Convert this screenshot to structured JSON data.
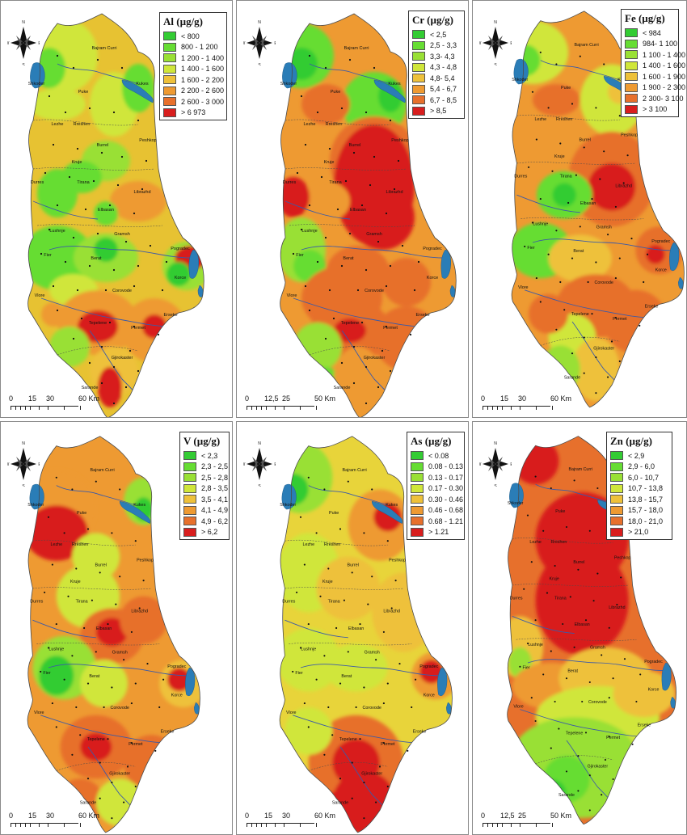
{
  "compass": {
    "n": "N",
    "s": "S",
    "e": "E",
    "w": "W"
  },
  "places": [
    "Bajram Curri",
    "Shkoder",
    "Kukes",
    "Puke",
    "Lezhe",
    "Rreshen",
    "Peshkop",
    "Burrel",
    "Kruje",
    "Durres",
    "Tirana",
    "Librazhd",
    "Elbasan",
    "Lushnje",
    "Gramsh",
    "Pogradec",
    "Fier",
    "Berat",
    "Korce",
    "Corovode",
    "Vlore",
    "Erseke",
    "Tepelene",
    "Permet",
    "Gjirokaster",
    "Sarande"
  ],
  "colors": {
    "sea": "#2a7db7",
    "river": "#3b5aa8",
    "border": "#4a4a4a",
    "dot": "#111111"
  },
  "panels": [
    {
      "id": "al",
      "title": "Al (µg/g)",
      "base_color": "#e7c232",
      "legend": [
        {
          "label": "< 800",
          "color": "#33cc33"
        },
        {
          "label": "800 - 1 200",
          "color": "#66dd33"
        },
        {
          "label": "1 200 - 1 400",
          "color": "#99e035"
        },
        {
          "label": "1 400 - 1 600",
          "color": "#d0e63a"
        },
        {
          "label": "1 600 - 2 200",
          "color": "#eec13a"
        },
        {
          "label": "2 200 - 2 600",
          "color": "#ee9a32"
        },
        {
          "label": "2 600 - 3 000",
          "color": "#e7702c"
        },
        {
          "label": "> 6 973",
          "color": "#d81e1e"
        }
      ],
      "scale": [
        "0",
        "15",
        "30",
        "60 Km"
      ]
    },
    {
      "id": "cr",
      "title": "Cr (µg/g)",
      "base_color": "#ee9a32",
      "legend": [
        {
          "label": "< 2,5",
          "color": "#33cc33"
        },
        {
          "label": "2,5 - 3,3",
          "color": "#66dd33"
        },
        {
          "label": "3,3- 4,3",
          "color": "#99e035"
        },
        {
          "label": "4,3 - 4,8",
          "color": "#d0e63a"
        },
        {
          "label": "4,8- 5,4",
          "color": "#eec13a"
        },
        {
          "label": "5,4 - 6,7",
          "color": "#ee9a32"
        },
        {
          "label": "6,7 - 8,5",
          "color": "#e7702c"
        },
        {
          "label": "> 8,5",
          "color": "#d81e1e"
        }
      ],
      "scale": [
        "0",
        "12,5",
        "25",
        "50 Km"
      ]
    },
    {
      "id": "fe",
      "title": "Fe (µg/g)",
      "base_color": "#ee9a32",
      "legend": [
        {
          "label": "< 984",
          "color": "#33cc33"
        },
        {
          "label": "984- 1 100",
          "color": "#66dd33"
        },
        {
          "label": "1 100 - 1 400",
          "color": "#99e035"
        },
        {
          "label": "1 400 - 1 600",
          "color": "#d0e63a"
        },
        {
          "label": "1 600 - 1 900",
          "color": "#eec13a"
        },
        {
          "label": "1 900 - 2 300",
          "color": "#ee9a32"
        },
        {
          "label": "2 300- 3 100",
          "color": "#e7702c"
        },
        {
          "label": "> 3 100",
          "color": "#d81e1e"
        }
      ],
      "scale": [
        "0",
        "15",
        "30",
        "60 Km"
      ]
    },
    {
      "id": "v",
      "title": "V (µg/g)",
      "base_color": "#ee9a32",
      "legend": [
        {
          "label": "< 2,3",
          "color": "#33cc33"
        },
        {
          "label": "2,3 - 2,5",
          "color": "#66dd33"
        },
        {
          "label": "2,5 - 2,8",
          "color": "#99e035"
        },
        {
          "label": "2,8 - 3,5",
          "color": "#d0e63a"
        },
        {
          "label": "3,5 - 4,1",
          "color": "#eec13a"
        },
        {
          "label": "4,1 - 4,9",
          "color": "#ee9a32"
        },
        {
          "label": "4,9 - 6,2",
          "color": "#e7702c"
        },
        {
          "label": "> 6,2",
          "color": "#d81e1e"
        }
      ],
      "scale": [
        "0",
        "15",
        "30",
        "60 Km"
      ]
    },
    {
      "id": "as",
      "title": "As (µg/g)",
      "base_color": "#e8d43a",
      "legend": [
        {
          "label": "< 0.08",
          "color": "#33cc33"
        },
        {
          "label": "0.08 - 0.13",
          "color": "#66dd33"
        },
        {
          "label": "0.13 - 0.17",
          "color": "#99e035"
        },
        {
          "label": "0.17 - 0.30",
          "color": "#d0e63a"
        },
        {
          "label": "0.30 - 0.46",
          "color": "#eec13a"
        },
        {
          "label": "0.46 - 0.68",
          "color": "#ee9a32"
        },
        {
          "label": "0.68 - 1.21",
          "color": "#e7702c"
        },
        {
          "label": "> 1.21",
          "color": "#d81e1e"
        }
      ],
      "scale": [
        "0",
        "15",
        "30",
        "60 Km"
      ]
    },
    {
      "id": "zn",
      "title": "Zn (µg/g)",
      "base_color": "#e7702c",
      "legend": [
        {
          "label": "< 2,9",
          "color": "#33cc33"
        },
        {
          "label": "2,9 - 6,0",
          "color": "#66dd33"
        },
        {
          "label": "6,0 - 10,7",
          "color": "#99e035"
        },
        {
          "label": "10,7 - 13,8",
          "color": "#d0e63a"
        },
        {
          "label": "13,8 - 15,7",
          "color": "#eec13a"
        },
        {
          "label": "15,7 - 18,0",
          "color": "#ee9a32"
        },
        {
          "label": "18,0 - 21,0",
          "color": "#e7702c"
        },
        {
          "label": "> 21,0",
          "color": "#d81e1e"
        }
      ],
      "scale": [
        "0",
        "12,5",
        "25",
        "50 Km"
      ]
    }
  ]
}
